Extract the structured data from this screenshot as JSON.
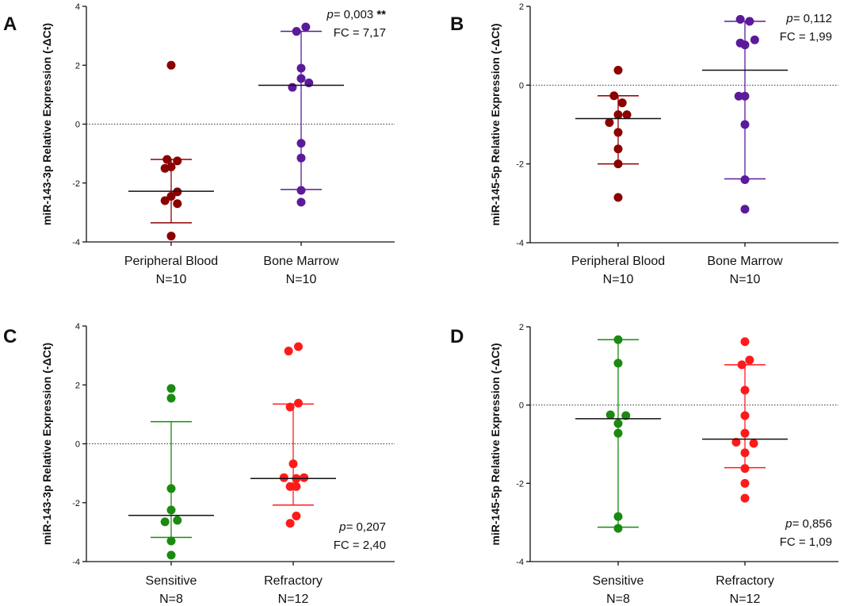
{
  "figure_panels": [
    "A",
    "B",
    "C",
    "D"
  ],
  "chart_data": [
    {
      "panel": "A",
      "type": "scatter",
      "ylabel": "miR-143-3p Relative Expression (-ΔCt)",
      "ylim": [
        -4,
        4
      ],
      "yticks": [
        4,
        2,
        0,
        -2,
        -4
      ],
      "yticklabels": [
        "4",
        "2",
        "0",
        "-2",
        "-4"
      ],
      "annotation": {
        "p_label": "p=",
        "p_value": " 0,003 ",
        "stars": "**",
        "fc": "FC = 7,17"
      },
      "annotation_position": "top-right",
      "series": [
        {
          "name": "Peripheral Blood",
          "n_label": "N=10",
          "color": "#8b0000",
          "values": [
            2.0,
            -1.2,
            -1.25,
            -1.5,
            -1.45,
            -2.3,
            -2.45,
            -2.6,
            -2.7,
            -3.8
          ],
          "jitter": [
            0,
            -0.4,
            0.6,
            -0.6,
            0,
            0.6,
            0,
            -0.6,
            0.6,
            0
          ],
          "median": -2.28,
          "err_low": -3.35,
          "err_high": -1.2
        },
        {
          "name": "Bone Marrow",
          "n_label": "N=10",
          "color": "#5b1a9a",
          "values": [
            3.15,
            3.3,
            1.9,
            1.55,
            1.4,
            1.25,
            -0.65,
            -1.15,
            -2.25,
            -2.65
          ],
          "jitter": [
            -0.45,
            0.45,
            0,
            0,
            0.75,
            -0.85,
            0,
            0,
            0,
            0
          ],
          "median": 1.32,
          "err_low": -2.22,
          "err_high": 3.15
        }
      ]
    },
    {
      "panel": "B",
      "type": "scatter",
      "ylabel": "miR-145-5p Relative Expression (-ΔCt)",
      "ylim": [
        -4,
        2
      ],
      "yticks": [
        2,
        0,
        -2,
        -4
      ],
      "yticklabels": [
        "2",
        "0",
        "-2",
        "-4"
      ],
      "annotation": {
        "p_label": "p=",
        "p_value": " 0,112",
        "stars": "",
        "fc": "FC = 1,99"
      },
      "annotation_position": "top-right",
      "series": [
        {
          "name": "Peripheral Blood",
          "n_label": "N=10",
          "color": "#8b0000",
          "values": [
            0.38,
            -0.27,
            -0.45,
            -0.75,
            -0.75,
            -0.95,
            -1.2,
            -1.62,
            -2.0,
            -2.85
          ],
          "jitter": [
            0,
            -0.4,
            0.4,
            0.85,
            0,
            -0.85,
            0,
            0,
            0,
            0
          ],
          "median": -0.85,
          "err_low": -2.0,
          "err_high": -0.27
        },
        {
          "name": "Bone Marrow",
          "n_label": "N=10",
          "color": "#5b1a9a",
          "values": [
            1.67,
            1.62,
            1.15,
            1.07,
            1.02,
            -0.28,
            -0.28,
            -1.0,
            -2.4,
            -3.15
          ],
          "jitter": [
            -0.45,
            0.45,
            0.95,
            -0.45,
            0,
            -0.6,
            0,
            0,
            0,
            0
          ],
          "median": 0.38,
          "err_low": -2.38,
          "err_high": 1.62
        }
      ]
    },
    {
      "panel": "C",
      "type": "scatter",
      "ylabel": "miR-143-3p Relative Expression (-ΔCt)",
      "ylim": [
        -4,
        4
      ],
      "yticks": [
        4,
        2,
        0,
        -2,
        -4
      ],
      "yticklabels": [
        "4",
        "2",
        "0",
        "-2",
        "-4"
      ],
      "annotation": {
        "p_label": "p=",
        "p_value": " 0,207",
        "stars": "",
        "fc": "FC = 2,40"
      },
      "annotation_position": "bottom-right",
      "series": [
        {
          "name": "Sensitive",
          "n_label": "N=8",
          "color": "#1a8a10",
          "values": [
            1.88,
            1.55,
            -1.52,
            -2.25,
            -2.6,
            -2.65,
            -3.3,
            -3.78
          ],
          "jitter": [
            0,
            0,
            0,
            0,
            0.6,
            -0.6,
            0,
            0
          ],
          "median": -2.43,
          "err_low": -3.18,
          "err_high": 0.75
        },
        {
          "name": "Refractory",
          "n_label": "N=12",
          "color": "#ff1a1a",
          "values": [
            3.3,
            3.15,
            1.38,
            1.25,
            -0.68,
            -1.15,
            -1.15,
            -1.18,
            -1.45,
            -1.45,
            -2.45,
            -2.7
          ],
          "jitter": [
            0.5,
            -0.45,
            0.5,
            -0.3,
            0,
            1.05,
            -0.9,
            0.3,
            -0.3,
            0.3,
            0.3,
            -0.3
          ],
          "median": -1.18,
          "err_low": -2.08,
          "err_high": 1.35
        }
      ]
    },
    {
      "panel": "D",
      "type": "scatter",
      "ylabel": "miR-145-5p Relative Expression (-ΔCt)",
      "ylim": [
        -4,
        2
      ],
      "yticks": [
        2,
        0,
        -2,
        -4
      ],
      "yticklabels": [
        "2",
        "0",
        "-2",
        "-4"
      ],
      "annotation": {
        "p_label": "p=",
        "p_value": " 0,856",
        "stars": "",
        "fc": "FC = 1,09"
      },
      "annotation_position": "bottom-right",
      "series": [
        {
          "name": "Sensitive",
          "n_label": "N=8",
          "color": "#1a8a10",
          "values": [
            1.67,
            1.07,
            -0.25,
            -0.27,
            -0.47,
            -0.72,
            -2.85,
            -3.15
          ],
          "jitter": [
            0,
            0,
            -0.75,
            0.75,
            0,
            0,
            0,
            0
          ],
          "median": -0.35,
          "err_low": -3.12,
          "err_high": 1.67
        },
        {
          "name": "Refractory",
          "n_label": "N=12",
          "color": "#ff1a1a",
          "values": [
            1.62,
            1.15,
            1.03,
            0.38,
            -0.27,
            -0.72,
            -0.95,
            -0.98,
            -1.22,
            -1.62,
            -2.0,
            -2.38
          ],
          "jitter": [
            0,
            0.45,
            -0.3,
            0,
            0,
            0,
            -0.85,
            0.85,
            0,
            0,
            0,
            0
          ],
          "median": -0.87,
          "err_low": -1.6,
          "err_high": 1.03
        }
      ]
    }
  ]
}
